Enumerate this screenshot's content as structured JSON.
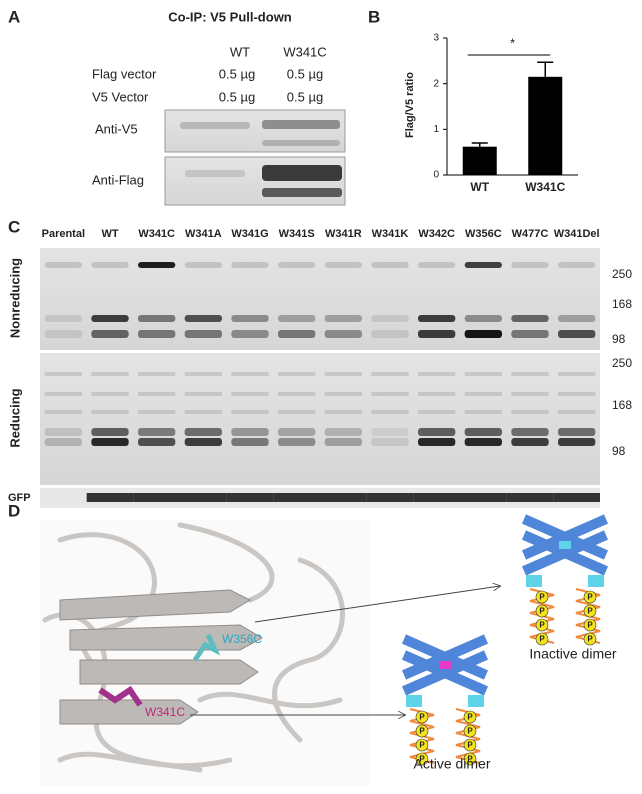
{
  "panel_a": {
    "label": "A",
    "title": "Co-IP: V5 Pull-down",
    "columns": [
      "WT",
      "W341C"
    ],
    "rows": [
      [
        "Flag vector",
        "0.5 µg",
        "0.5 µg"
      ],
      [
        "V5 Vector",
        "0.5 µg",
        "0.5 µg"
      ]
    ],
    "blots": [
      "Anti-V5",
      "Anti-Flag"
    ]
  },
  "chart_data": {
    "type": "bar",
    "label": "B",
    "ylabel": "Flag/V5 ratio",
    "categories": [
      "WT",
      "W341C"
    ],
    "values": [
      0.62,
      2.15
    ],
    "errors": [
      0.08,
      0.32
    ],
    "color": "#000000",
    "ylim": [
      0,
      3
    ],
    "yticks": [
      0,
      1,
      2,
      3
    ],
    "significance": "*"
  },
  "panel_c": {
    "label": "C",
    "lanes": [
      "Parental",
      "WT",
      "W341C",
      "W341A",
      "W341G",
      "W341S",
      "W341R",
      "W341K",
      "W342C",
      "W356C",
      "W477C",
      "W341Del"
    ],
    "rows": [
      "Nonreducing",
      "Reducing",
      "GFP"
    ],
    "nonreducing_markers": [
      250,
      168,
      98
    ],
    "reducing_markers": [
      250,
      168,
      98
    ]
  },
  "panel_d": {
    "label": "D",
    "mutations": [
      "W356C",
      "W341C"
    ],
    "dimers": [
      "Inactive dimer",
      "Active dimer"
    ],
    "phospho": "P"
  }
}
